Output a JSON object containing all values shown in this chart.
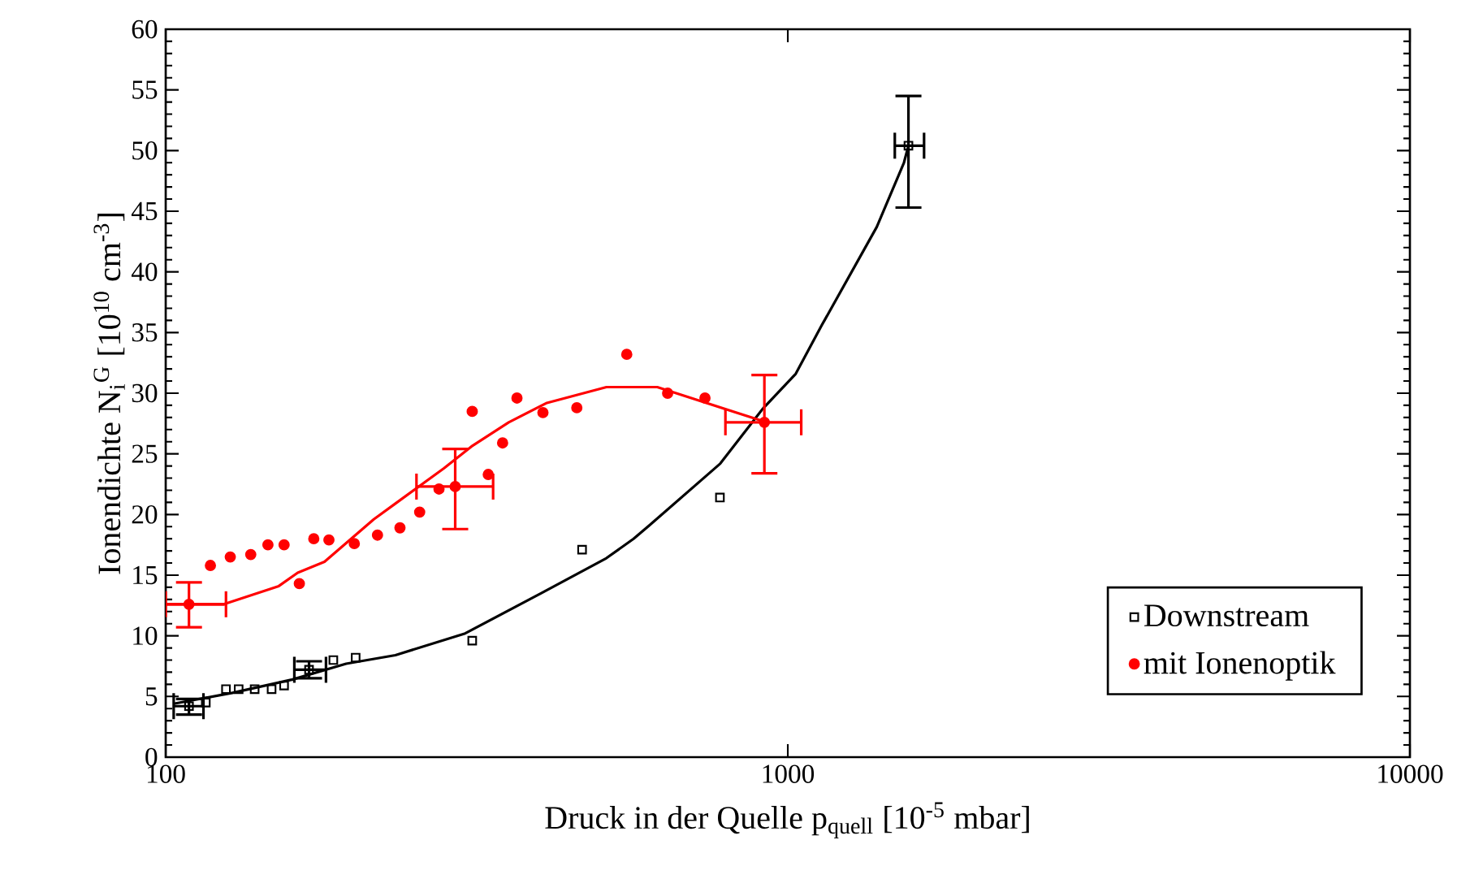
{
  "chart_data": {
    "type": "scatter",
    "xlabel": "Druck in der Quelle p$_{quell}$ [10$^{-5}$ mbar]",
    "ylabel": "Ionendichte N$_{i}$$^{G}$ [10$^{10}$ cm$^{-3}$]",
    "log": "x",
    "xlim": [
      100,
      10000
    ],
    "ylim": [
      0,
      60
    ],
    "xticks": [
      100,
      1000,
      10000
    ],
    "yticks": [
      0,
      5,
      10,
      15,
      20,
      25,
      30,
      35,
      40,
      45,
      50,
      55,
      60
    ],
    "legend": "bottom right",
    "series": [
      {
        "name": "Downstream",
        "marker": "square",
        "color": "#000000",
        "x": [
          109,
          116,
          125,
          131,
          139,
          148,
          155,
          170,
          186,
          202,
          311,
          467,
          778,
          1563
        ],
        "values": [
          4.2,
          4.5,
          5.6,
          5.6,
          5.6,
          5.6,
          5.9,
          7.2,
          8.0,
          8.2,
          9.6,
          17.1,
          21.4,
          50.4
        ],
        "errors": [
          [
            3.5,
            4.8
          ],
          null,
          null,
          null,
          null,
          null,
          null,
          [
            6.5,
            7.9
          ],
          null,
          null,
          null,
          null,
          null,
          [
            45.3,
            54.5
          ]
        ],
        "xerrors": [
          [
            103,
            115
          ],
          null,
          null,
          null,
          null,
          null,
          null,
          [
            161,
            181
          ],
          null,
          null,
          null,
          null,
          null,
          [
            1486,
            1656
          ]
        ]
      },
      {
        "type": "line",
        "marker": "none",
        "color": "#000000",
        "x": [
          103,
          128,
          160,
          195,
          234,
          303,
          401,
          511,
          565,
          599,
          779,
          911,
          1030,
          1134,
          1390,
          1537,
          1563
        ],
        "values": [
          4.4,
          5.3,
          6.4,
          7.7,
          8.4,
          10.2,
          13.5,
          16.4,
          18.0,
          19.1,
          24.2,
          28.7,
          31.6,
          35.6,
          43.7,
          49.0,
          50.4
        ]
      },
      {
        "name": "mit Ionenoptik",
        "marker": "circle",
        "color": "#ff0000",
        "x": [
          109,
          118,
          127,
          137,
          146,
          155,
          164,
          173,
          183,
          201,
          219,
          238,
          256,
          275,
          292,
          311,
          330,
          348,
          367,
          404,
          458,
          551,
          641,
          736,
          917
        ],
        "values": [
          12.6,
          15.8,
          16.5,
          16.7,
          17.5,
          17.5,
          14.3,
          18.0,
          17.9,
          17.6,
          18.3,
          18.9,
          20.2,
          22.1,
          22.3,
          28.5,
          23.3,
          25.9,
          29.6,
          28.4,
          28.8,
          33.2,
          30.0,
          29.6,
          27.6
        ],
        "errors": [
          [
            10.7,
            14.4
          ],
          null,
          null,
          null,
          null,
          null,
          null,
          null,
          null,
          null,
          null,
          null,
          null,
          null,
          [
            18.8,
            25.4
          ],
          null,
          null,
          null,
          null,
          null,
          null,
          null,
          null,
          null,
          [
            23.4,
            31.5
          ]
        ],
        "xerrors": [
          [
            100,
            125
          ],
          null,
          null,
          null,
          null,
          null,
          null,
          null,
          null,
          null,
          null,
          null,
          null,
          null,
          [
            253,
            336
          ],
          null,
          null,
          null,
          null,
          null,
          null,
          null,
          null,
          null,
          [
            794,
            1051
          ]
        ]
      },
      {
        "type": "line",
        "marker": "none",
        "color": "#ff0000",
        "x": [
          100,
          124,
          152,
          163,
          180,
          216,
          234,
          280,
          310,
          356,
          410,
          511,
          617,
          911
        ],
        "values": [
          12.6,
          12.6,
          14.1,
          15.2,
          16.1,
          19.6,
          20.9,
          23.8,
          25.6,
          27.6,
          29.2,
          30.5,
          30.5,
          27.7
        ]
      }
    ]
  }
}
